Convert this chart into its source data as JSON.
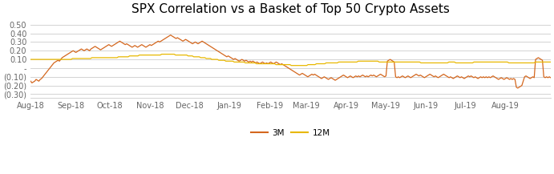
{
  "title": "SPX Correlation vs a Basket of Top 50 Crypto Assets",
  "title_fontsize": 11,
  "line_3m_color": "#D4671E",
  "line_12m_color": "#E8B800",
  "ylim": [
    -0.34,
    0.57
  ],
  "yticks": [
    0.5,
    0.4,
    0.3,
    0.2,
    0.1,
    0.0,
    -0.1,
    -0.2,
    -0.3
  ],
  "ytick_labels": [
    "0.50",
    "0.40",
    "0.30",
    "0.20",
    "0.10",
    "-",
    "(0.10)",
    "(0.20)",
    "(0.30)"
  ],
  "xlabel_dates": [
    "Aug-18",
    "Sep-18",
    "Oct-18",
    "Nov-18",
    "Dec-18",
    "Jan-19",
    "Feb-19",
    "Mar-19",
    "Apr-19",
    "May-19",
    "Jun-19",
    "Jul-19",
    "Aug-19"
  ],
  "legend_labels": [
    "3M",
    "12M"
  ],
  "background_color": "#ffffff",
  "grid_color": "#cccccc",
  "3m_data": [
    -0.15,
    -0.17,
    -0.16,
    -0.15,
    -0.13,
    -0.14,
    -0.15,
    -0.13,
    -0.12,
    -0.1,
    -0.08,
    -0.06,
    -0.04,
    -0.02,
    0.0,
    0.02,
    0.04,
    0.06,
    0.07,
    0.08,
    0.09,
    0.08,
    0.1,
    0.12,
    0.13,
    0.14,
    0.15,
    0.16,
    0.17,
    0.18,
    0.19,
    0.2,
    0.19,
    0.18,
    0.19,
    0.2,
    0.21,
    0.22,
    0.21,
    0.2,
    0.21,
    0.22,
    0.21,
    0.2,
    0.22,
    0.23,
    0.24,
    0.25,
    0.24,
    0.23,
    0.22,
    0.21,
    0.22,
    0.23,
    0.24,
    0.25,
    0.26,
    0.27,
    0.26,
    0.25,
    0.26,
    0.27,
    0.28,
    0.29,
    0.3,
    0.31,
    0.3,
    0.29,
    0.28,
    0.27,
    0.28,
    0.27,
    0.26,
    0.25,
    0.24,
    0.25,
    0.26,
    0.25,
    0.24,
    0.25,
    0.26,
    0.27,
    0.26,
    0.25,
    0.24,
    0.25,
    0.26,
    0.27,
    0.26,
    0.27,
    0.28,
    0.29,
    0.3,
    0.31,
    0.3,
    0.31,
    0.32,
    0.33,
    0.34,
    0.35,
    0.36,
    0.37,
    0.38,
    0.37,
    0.36,
    0.35,
    0.34,
    0.35,
    0.34,
    0.33,
    0.32,
    0.31,
    0.32,
    0.33,
    0.32,
    0.31,
    0.3,
    0.29,
    0.28,
    0.29,
    0.3,
    0.29,
    0.28,
    0.29,
    0.3,
    0.31,
    0.3,
    0.29,
    0.28,
    0.27,
    0.26,
    0.25,
    0.24,
    0.23,
    0.22,
    0.21,
    0.2,
    0.19,
    0.18,
    0.17,
    0.16,
    0.15,
    0.14,
    0.13,
    0.14,
    0.13,
    0.12,
    0.11,
    0.1,
    0.11,
    0.1,
    0.09,
    0.08,
    0.09,
    0.1,
    0.09,
    0.08,
    0.09,
    0.08,
    0.07,
    0.08,
    0.07,
    0.08,
    0.07,
    0.06,
    0.07,
    0.06,
    0.05,
    0.06,
    0.07,
    0.06,
    0.05,
    0.06,
    0.05,
    0.06,
    0.07,
    0.06,
    0.05,
    0.06,
    0.07,
    0.06,
    0.05,
    0.04,
    0.05,
    0.04,
    0.03,
    0.02,
    0.01,
    0.0,
    -0.01,
    -0.02,
    -0.03,
    -0.04,
    -0.05,
    -0.06,
    -0.07,
    -0.08,
    -0.07,
    -0.06,
    -0.07,
    -0.08,
    -0.09,
    -0.1,
    -0.09,
    -0.08,
    -0.07,
    -0.08,
    -0.07,
    -0.08,
    -0.09,
    -0.1,
    -0.11,
    -0.12,
    -0.11,
    -0.1,
    -0.11,
    -0.12,
    -0.13,
    -0.12,
    -0.11,
    -0.12,
    -0.13,
    -0.14,
    -0.13,
    -0.12,
    -0.11,
    -0.1,
    -0.09,
    -0.08,
    -0.09,
    -0.1,
    -0.11,
    -0.1,
    -0.09,
    -0.1,
    -0.11,
    -0.1,
    -0.09,
    -0.1,
    -0.09,
    -0.1,
    -0.09,
    -0.08,
    -0.09,
    -0.1,
    -0.09,
    -0.1,
    -0.09,
    -0.08,
    -0.09,
    -0.08,
    -0.09,
    -0.1,
    -0.09,
    -0.08,
    -0.07,
    -0.08,
    -0.09,
    -0.1,
    -0.09,
    0.08,
    0.09,
    0.1,
    0.09,
    0.08,
    0.07,
    -0.1,
    -0.11,
    -0.1,
    -0.11,
    -0.1,
    -0.09,
    -0.1,
    -0.11,
    -0.1,
    -0.09,
    -0.1,
    -0.11,
    -0.1,
    -0.09,
    -0.08,
    -0.07,
    -0.08,
    -0.09,
    -0.08,
    -0.09,
    -0.1,
    -0.11,
    -0.1,
    -0.09,
    -0.08,
    -0.07,
    -0.08,
    -0.09,
    -0.1,
    -0.09,
    -0.1,
    -0.11,
    -0.1,
    -0.09,
    -0.08,
    -0.07,
    -0.08,
    -0.09,
    -0.1,
    -0.11,
    -0.1,
    -0.11,
    -0.12,
    -0.11,
    -0.1,
    -0.09,
    -0.1,
    -0.11,
    -0.1,
    -0.11,
    -0.12,
    -0.11,
    -0.1,
    -0.09,
    -0.1,
    -0.09,
    -0.1,
    -0.11,
    -0.1,
    -0.11,
    -0.12,
    -0.11,
    -0.1,
    -0.11,
    -0.1,
    -0.11,
    -0.1,
    -0.11,
    -0.1,
    -0.11,
    -0.1,
    -0.09,
    -0.1,
    -0.11,
    -0.12,
    -0.13,
    -0.12,
    -0.11,
    -0.12,
    -0.13,
    -0.12,
    -0.11,
    -0.12,
    -0.13,
    -0.12,
    -0.13,
    -0.12,
    -0.13,
    -0.22,
    -0.23,
    -0.22,
    -0.21,
    -0.2,
    -0.15,
    -0.1,
    -0.09,
    -0.1,
    -0.11,
    -0.12,
    -0.11,
    -0.1,
    -0.11,
    0.1,
    0.11,
    0.12,
    0.11,
    0.1,
    0.09,
    -0.1,
    -0.11,
    -0.1,
    -0.11,
    -0.1,
    -0.11
  ],
  "12m_data": [
    0.1,
    0.1,
    0.1,
    0.1,
    0.1,
    0.1,
    0.1,
    0.1,
    0.1,
    0.1,
    0.1,
    0.1,
    0.1,
    0.1,
    0.1,
    0.1,
    0.1,
    0.1,
    0.1,
    0.1,
    0.1,
    0.1,
    0.1,
    0.1,
    0.1,
    0.1,
    0.1,
    0.1,
    0.1,
    0.1,
    0.11,
    0.11,
    0.11,
    0.11,
    0.11,
    0.11,
    0.11,
    0.11,
    0.11,
    0.11,
    0.11,
    0.11,
    0.11,
    0.11,
    0.12,
    0.12,
    0.12,
    0.12,
    0.12,
    0.12,
    0.12,
    0.12,
    0.12,
    0.12,
    0.12,
    0.12,
    0.12,
    0.12,
    0.12,
    0.12,
    0.12,
    0.12,
    0.12,
    0.13,
    0.13,
    0.13,
    0.13,
    0.13,
    0.13,
    0.13,
    0.13,
    0.14,
    0.14,
    0.14,
    0.14,
    0.14,
    0.14,
    0.14,
    0.15,
    0.15,
    0.15,
    0.15,
    0.15,
    0.15,
    0.15,
    0.15,
    0.15,
    0.15,
    0.15,
    0.15,
    0.15,
    0.15,
    0.15,
    0.15,
    0.16,
    0.16,
    0.16,
    0.16,
    0.16,
    0.16,
    0.16,
    0.16,
    0.16,
    0.16,
    0.15,
    0.15,
    0.15,
    0.15,
    0.15,
    0.15,
    0.15,
    0.15,
    0.15,
    0.14,
    0.14,
    0.14,
    0.14,
    0.13,
    0.13,
    0.13,
    0.13,
    0.13,
    0.12,
    0.12,
    0.12,
    0.12,
    0.11,
    0.11,
    0.11,
    0.11,
    0.1,
    0.1,
    0.1,
    0.1,
    0.1,
    0.09,
    0.09,
    0.09,
    0.09,
    0.09,
    0.08,
    0.08,
    0.08,
    0.08,
    0.08,
    0.08,
    0.07,
    0.07,
    0.07,
    0.07,
    0.07,
    0.07,
    0.07,
    0.07,
    0.06,
    0.06,
    0.06,
    0.06,
    0.06,
    0.06,
    0.06,
    0.06,
    0.05,
    0.05,
    0.05,
    0.05,
    0.05,
    0.05,
    0.05,
    0.05,
    0.05,
    0.05,
    0.05,
    0.05,
    0.05,
    0.05,
    0.04,
    0.04,
    0.04,
    0.04,
    0.04,
    0.04,
    0.04,
    0.04,
    0.04,
    0.04,
    0.04,
    0.03,
    0.03,
    0.03,
    0.03,
    0.03,
    0.03,
    0.03,
    0.03,
    0.03,
    0.03,
    0.03,
    0.03,
    0.04,
    0.04,
    0.04,
    0.04,
    0.04,
    0.04,
    0.05,
    0.05,
    0.05,
    0.05,
    0.05,
    0.05,
    0.05,
    0.06,
    0.06,
    0.06,
    0.06,
    0.06,
    0.06,
    0.06,
    0.06,
    0.06,
    0.07,
    0.07,
    0.07,
    0.07,
    0.07,
    0.07,
    0.07,
    0.07,
    0.07,
    0.07,
    0.07,
    0.07,
    0.07,
    0.07,
    0.08,
    0.08,
    0.08,
    0.08,
    0.08,
    0.08,
    0.08,
    0.08,
    0.08,
    0.08,
    0.08,
    0.08,
    0.08,
    0.08,
    0.08,
    0.07,
    0.07,
    0.07,
    0.07,
    0.07,
    0.07,
    0.07,
    0.07,
    0.07,
    0.07,
    0.07,
    0.07,
    0.07,
    0.07,
    0.07,
    0.07,
    0.07,
    0.07,
    0.07,
    0.07,
    0.07,
    0.07,
    0.07,
    0.07,
    0.07,
    0.07,
    0.07,
    0.07,
    0.07,
    0.07,
    0.06,
    0.06,
    0.06,
    0.06,
    0.06,
    0.06,
    0.06,
    0.06,
    0.06,
    0.06,
    0.06,
    0.06,
    0.06,
    0.06,
    0.06,
    0.06,
    0.06,
    0.06,
    0.06,
    0.06,
    0.07,
    0.07,
    0.07,
    0.07,
    0.07,
    0.06,
    0.06,
    0.06,
    0.06,
    0.06,
    0.06,
    0.06,
    0.06,
    0.06,
    0.06,
    0.06,
    0.06,
    0.06,
    0.07,
    0.07,
    0.07,
    0.07,
    0.07,
    0.07,
    0.07,
    0.07,
    0.07,
    0.07,
    0.07,
    0.07,
    0.07,
    0.07,
    0.07,
    0.07,
    0.07,
    0.07,
    0.07,
    0.07,
    0.07,
    0.07,
    0.07,
    0.07,
    0.07,
    0.06,
    0.06,
    0.06,
    0.06,
    0.06,
    0.06,
    0.06,
    0.06,
    0.06,
    0.06,
    0.06,
    0.06,
    0.06,
    0.06,
    0.06,
    0.06,
    0.06,
    0.06,
    0.06,
    0.07,
    0.07,
    0.07,
    0.07,
    0.07,
    0.07,
    0.07,
    0.07,
    0.07,
    0.07,
    0.07,
    0.07
  ]
}
